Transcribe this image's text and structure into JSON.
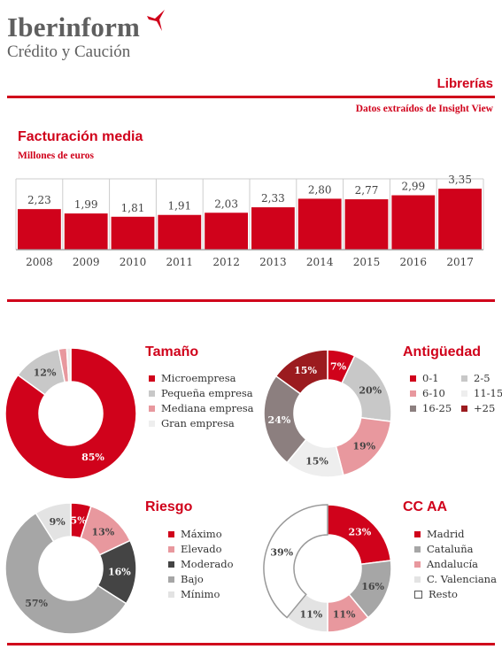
{
  "brand": {
    "name": "Iberinform",
    "subtitle": "Crédito y Caución"
  },
  "header": {
    "title": "Librerías",
    "source": "Datos extraídos de Insight View"
  },
  "colors": {
    "accent": "#d0021b"
  },
  "chart_data": [
    {
      "type": "bar",
      "title": "Facturación media",
      "ylabel": "Millones de euros",
      "categories": [
        "2008",
        "2009",
        "2010",
        "2011",
        "2012",
        "2013",
        "2014",
        "2015",
        "2016",
        "2017"
      ],
      "values": [
        2.23,
        1.99,
        1.81,
        1.91,
        2.03,
        2.33,
        2.8,
        2.77,
        2.99,
        3.35
      ],
      "value_labels": [
        "2,23",
        "1,99",
        "1,81",
        "1,91",
        "2,03",
        "2,33",
        "2,80",
        "2,77",
        "2,99",
        "3,35"
      ],
      "ylim": [
        0,
        3.6
      ],
      "color": "#d0021b"
    },
    {
      "type": "pie",
      "title": "Tamaño",
      "legend": "right",
      "slices": [
        {
          "name": "Microempresa",
          "value": 85,
          "label": "85%",
          "color": "#d0021b"
        },
        {
          "name": "Pequeña empresa",
          "value": 12,
          "label": "12%",
          "color": "#c8c8c8"
        },
        {
          "name": "Mediana empresa",
          "value": 2,
          "label": "",
          "color": "#e8989e"
        },
        {
          "name": "Gran empresa",
          "value": 1,
          "label": "",
          "color": "#eeeeee"
        }
      ]
    },
    {
      "type": "pie",
      "title": "Antigüedad",
      "legend": "right",
      "slices": [
        {
          "name": "0-1",
          "value": 7,
          "label": "7%",
          "color": "#d0021b"
        },
        {
          "name": "2-5",
          "value": 20,
          "label": "20%",
          "color": "#c8c8c8"
        },
        {
          "name": "6-10",
          "value": 19,
          "label": "19%",
          "color": "#e8989e"
        },
        {
          "name": "11-15",
          "value": 15,
          "label": "15%",
          "color": "#eeeeee"
        },
        {
          "name": "16-25",
          "value": 24,
          "label": "24%",
          "color": "#8c7f7f"
        },
        {
          "name": "+25",
          "value": 15,
          "label": "15%",
          "color": "#9b1b1f"
        }
      ]
    },
    {
      "type": "pie",
      "title": "Riesgo",
      "legend": "right",
      "slices": [
        {
          "name": "Máximo",
          "value": 5,
          "label": "5%",
          "color": "#d0021b"
        },
        {
          "name": "Elevado",
          "value": 13,
          "label": "13%",
          "color": "#e8989e"
        },
        {
          "name": "Moderado",
          "value": 16,
          "label": "16%",
          "color": "#444444"
        },
        {
          "name": "Bajo",
          "value": 57,
          "label": "57%",
          "color": "#a6a6a6"
        },
        {
          "name": "Mínimo",
          "value": 9,
          "label": "9%",
          "color": "#e3e3e3"
        }
      ]
    },
    {
      "type": "pie",
      "title": "CC AA",
      "legend": "right",
      "slices": [
        {
          "name": "Madrid",
          "value": 23,
          "label": "23%",
          "color": "#d0021b"
        },
        {
          "name": "Cataluña",
          "value": 16,
          "label": "16%",
          "color": "#a6a6a6"
        },
        {
          "name": "Andalucía",
          "value": 11,
          "label": "11%",
          "color": "#e8989e"
        },
        {
          "name": "C. Valenciana",
          "value": 11,
          "label": "11%",
          "color": "#e3e3e3"
        },
        {
          "name": "Resto",
          "value": 39,
          "label": "39%",
          "color": "#ffffff"
        }
      ]
    }
  ]
}
